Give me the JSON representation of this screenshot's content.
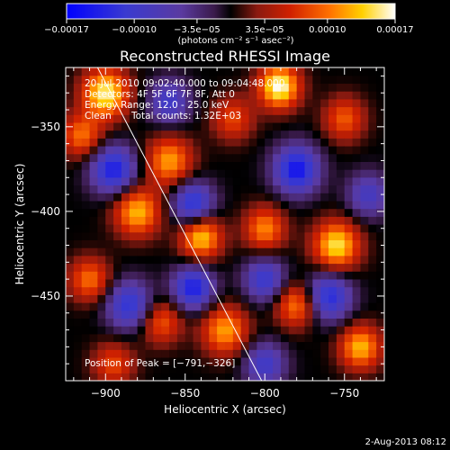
{
  "chart_data": {
    "type": "heatmap",
    "title": "Reconstructed RHESSI Image",
    "xlabel": "Heliocentric X (arcsec)",
    "ylabel": "Heliocentric Y (arcsec)",
    "xlim": [
      -925,
      -725
    ],
    "ylim": [
      -500,
      -315
    ],
    "xticks": [
      -900,
      -850,
      -800,
      -750
    ],
    "yticks": [
      -450,
      -400,
      -350
    ],
    "xtick_labels": [
      "−900",
      "−850",
      "−800",
      "−750"
    ],
    "ytick_labels": [
      "−450",
      "−400",
      "−350"
    ],
    "colorbar": {
      "range": [
        -0.00017,
        0.00017
      ],
      "tick_values": [
        -0.00017,
        -0.0001,
        -3.5e-05,
        3.5e-05,
        0.0001,
        0.00017
      ],
      "tick_labels": [
        "−0.00017",
        "−0.00010",
        "−3.5e−05",
        "3.5e−05",
        "0.00010",
        "0.00017"
      ],
      "units_label": "(photons cm⁻² s⁻¹ asec⁻²)"
    },
    "annotations": {
      "time_range": "20-Jul-2010 09:02:40.000 to 09:04:48.000",
      "detectors": "Detectors: 4F 5F 6F 7F 8F, Att 0",
      "energy": "Energy Range: 12.0 - 25.0 keV",
      "clean": "Clean",
      "total_counts": "Total counts: 1.32E+03",
      "peak": "Position of Peak = [−791,−326]"
    },
    "limb_line": {
      "x": [
        -905,
        -802
      ],
      "y": [
        -315,
        -500
      ]
    },
    "image_grid_size": [
      40,
      40
    ],
    "blobs": [
      {
        "x": -900,
        "y": -330,
        "a": 0.00016,
        "s": 10
      },
      {
        "x": -915,
        "y": -355,
        "a": 0.0001,
        "s": 9
      },
      {
        "x": -860,
        "y": -370,
        "a": 0.00012,
        "s": 10
      },
      {
        "x": -820,
        "y": -345,
        "a": 8e-05,
        "s": 9
      },
      {
        "x": -791,
        "y": -326,
        "a": 0.00017,
        "s": 9
      },
      {
        "x": -750,
        "y": -345,
        "a": 9e-05,
        "s": 9
      },
      {
        "x": -880,
        "y": -400,
        "a": 0.00013,
        "s": 10
      },
      {
        "x": -840,
        "y": -415,
        "a": 0.00014,
        "s": 9
      },
      {
        "x": -800,
        "y": -410,
        "a": 0.00011,
        "s": 9
      },
      {
        "x": -755,
        "y": -420,
        "a": 0.00015,
        "s": 10
      },
      {
        "x": -910,
        "y": -440,
        "a": 0.0001,
        "s": 9
      },
      {
        "x": -865,
        "y": -465,
        "a": 9e-05,
        "s": 9
      },
      {
        "x": -825,
        "y": -470,
        "a": 0.00012,
        "s": 10
      },
      {
        "x": -780,
        "y": -455,
        "a": 0.00011,
        "s": 9
      },
      {
        "x": -740,
        "y": -480,
        "a": 0.00013,
        "s": 9
      },
      {
        "x": -895,
        "y": -490,
        "a": 8e-05,
        "s": 9
      },
      {
        "x": -895,
        "y": -375,
        "a": -0.00014,
        "s": 10
      },
      {
        "x": -845,
        "y": -395,
        "a": -0.00013,
        "s": 9
      },
      {
        "x": -780,
        "y": -375,
        "a": -0.00015,
        "s": 10
      },
      {
        "x": -735,
        "y": -390,
        "a": -9e-05,
        "s": 9
      },
      {
        "x": -885,
        "y": -455,
        "a": -0.00012,
        "s": 10
      },
      {
        "x": -845,
        "y": -445,
        "a": -0.00014,
        "s": 9
      },
      {
        "x": -800,
        "y": -440,
        "a": -0.00011,
        "s": 9
      },
      {
        "x": -760,
        "y": -450,
        "a": -0.00013,
        "s": 10
      },
      {
        "x": -860,
        "y": -335,
        "a": -0.0001,
        "s": 9
      },
      {
        "x": -800,
        "y": -490,
        "a": -0.0001,
        "s": 9
      }
    ]
  },
  "footer_date": "2-Aug-2013 08:12"
}
